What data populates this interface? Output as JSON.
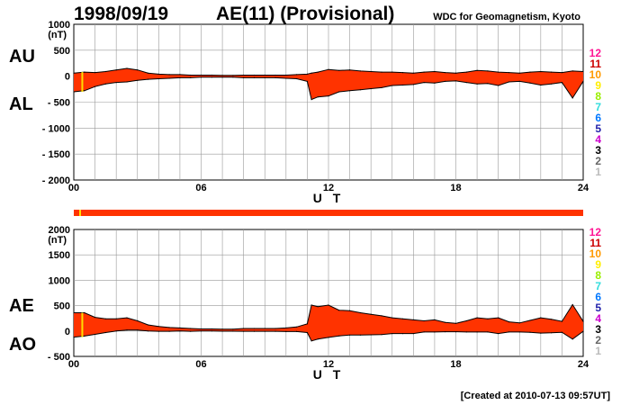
{
  "header": {
    "date": "1998/09/19",
    "title": "AE(11) (Provisional)",
    "source": "WDC for Geomagnetism, Kyoto"
  },
  "footer": {
    "created": "[Created at 2010-07-13 09:57UT]"
  },
  "legend": {
    "items": [
      {
        "label": "12",
        "color": "#ff1493"
      },
      {
        "label": "11",
        "color": "#cc0000"
      },
      {
        "label": "10",
        "color": "#ff9900"
      },
      {
        "label": "9",
        "color": "#ffee00"
      },
      {
        "label": "8",
        "color": "#99ee00"
      },
      {
        "label": "7",
        "color": "#33dddd"
      },
      {
        "label": "6",
        "color": "#0077ff"
      },
      {
        "label": "5",
        "color": "#2222aa"
      },
      {
        "label": "4",
        "color": "#cc00cc"
      },
      {
        "label": "3",
        "color": "#000000"
      },
      {
        "label": "2",
        "color": "#666666"
      },
      {
        "label": "1",
        "color": "#bbbbbb"
      }
    ]
  },
  "colors": {
    "fill": "#ff3300",
    "line": "#000000",
    "grid": "#999999",
    "marker": "#ffdd00"
  },
  "chart_data": [
    {
      "type": "area",
      "upper_label": "AU",
      "lower_label": "AL",
      "unit": "(nT)",
      "xlabel": "U T",
      "xticks": [
        0,
        6,
        12,
        18,
        24
      ],
      "xtick_labels": [
        "00",
        "06",
        "12",
        "18",
        "24"
      ],
      "xlim": [
        0,
        24
      ],
      "ylim": [
        -2000,
        1000
      ],
      "yticks": [
        1000,
        500,
        0,
        -500,
        -1000,
        -1500,
        -2000
      ],
      "ytick_labels": [
        "1000",
        "500",
        "0",
        "- 500",
        "- 1000",
        "- 1500",
        "- 2000"
      ],
      "grid": true,
      "x": [
        0,
        0.5,
        1,
        1.5,
        2,
        2.5,
        3,
        3.5,
        4,
        4.5,
        5,
        5.5,
        6,
        6.5,
        7,
        7.5,
        8,
        8.5,
        9,
        9.5,
        10,
        10.5,
        11,
        11.2,
        11.5,
        12,
        12.5,
        13,
        13.5,
        14,
        14.5,
        15,
        15.5,
        16,
        16.5,
        17,
        17.5,
        18,
        18.5,
        19,
        19.5,
        20,
        20.5,
        21,
        21.5,
        22,
        22.5,
        23,
        23.5,
        24
      ],
      "series": [
        {
          "name": "AU",
          "values": [
            60,
            80,
            70,
            90,
            120,
            150,
            120,
            60,
            40,
            30,
            30,
            20,
            20,
            20,
            15,
            15,
            20,
            20,
            20,
            20,
            20,
            30,
            40,
            60,
            80,
            130,
            110,
            120,
            100,
            90,
            80,
            80,
            70,
            60,
            80,
            90,
            70,
            60,
            80,
            110,
            100,
            80,
            70,
            60,
            80,
            90,
            80,
            70,
            100,
            90
          ]
        },
        {
          "name": "AL",
          "values": [
            -300,
            -280,
            -200,
            -150,
            -120,
            -110,
            -80,
            -60,
            -50,
            -40,
            -30,
            -30,
            -20,
            -20,
            -20,
            -20,
            -30,
            -30,
            -30,
            -30,
            -40,
            -50,
            -100,
            -450,
            -400,
            -380,
            -300,
            -280,
            -260,
            -240,
            -220,
            -180,
            -170,
            -160,
            -120,
            -130,
            -100,
            -90,
            -120,
            -150,
            -140,
            -180,
            -110,
            -100,
            -130,
            -170,
            -150,
            -120,
            -420,
            -100
          ]
        }
      ]
    },
    {
      "type": "area",
      "upper_label": "AE",
      "lower_label": "AO",
      "unit": "(nT)",
      "xlabel": "U T",
      "xticks": [
        0,
        6,
        12,
        18,
        24
      ],
      "xtick_labels": [
        "00",
        "06",
        "12",
        "18",
        "24"
      ],
      "xlim": [
        0,
        24
      ],
      "ylim": [
        -500,
        2000
      ],
      "yticks": [
        2000,
        1500,
        1000,
        500,
        0,
        -500
      ],
      "ytick_labels": [
        "2000",
        "1500",
        "1000",
        "500",
        "0",
        "- 500"
      ],
      "grid": true,
      "x": [
        0,
        0.5,
        1,
        1.5,
        2,
        2.5,
        3,
        3.5,
        4,
        4.5,
        5,
        5.5,
        6,
        6.5,
        7,
        7.5,
        8,
        8.5,
        9,
        9.5,
        10,
        10.5,
        11,
        11.2,
        11.5,
        12,
        12.5,
        13,
        13.5,
        14,
        14.5,
        15,
        15.5,
        16,
        16.5,
        17,
        17.5,
        18,
        18.5,
        19,
        19.5,
        20,
        20.5,
        21,
        21.5,
        22,
        22.5,
        23,
        23.5,
        24
      ],
      "series": [
        {
          "name": "AE",
          "values": [
            360,
            360,
            270,
            240,
            240,
            260,
            200,
            120,
            90,
            70,
            60,
            50,
            40,
            40,
            35,
            35,
            50,
            50,
            50,
            50,
            60,
            80,
            140,
            510,
            480,
            510,
            410,
            400,
            360,
            330,
            300,
            260,
            240,
            220,
            200,
            220,
            170,
            150,
            200,
            260,
            240,
            260,
            180,
            160,
            210,
            260,
            230,
            190,
            520,
            190
          ]
        },
        {
          "name": "AO",
          "values": [
            -120,
            -100,
            -65,
            -30,
            0,
            20,
            20,
            0,
            -5,
            -5,
            0,
            -5,
            0,
            0,
            -3,
            -3,
            -5,
            -5,
            -5,
            -5,
            -10,
            -10,
            -30,
            -195,
            -160,
            -125,
            -95,
            -80,
            -80,
            -75,
            -70,
            -50,
            -50,
            -50,
            -20,
            -20,
            -15,
            -15,
            -20,
            -20,
            -20,
            -50,
            -20,
            -20,
            -25,
            -40,
            -35,
            -25,
            -160,
            -5
          ]
        }
      ]
    }
  ]
}
